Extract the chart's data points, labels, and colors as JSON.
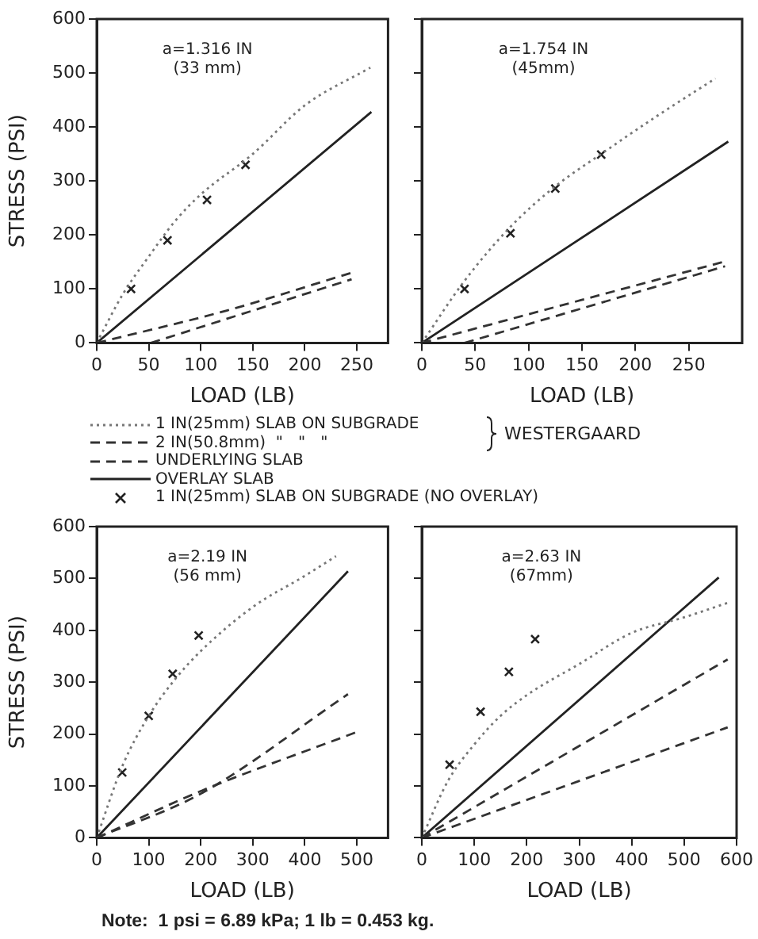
{
  "chart_data": [
    {
      "type": "line",
      "xlabel": "LOAD (LB)",
      "ylabel": "STRESS (PSI)",
      "xlim": [
        0,
        280
      ],
      "xticks": [
        0,
        50,
        100,
        150,
        200,
        250
      ],
      "ylim": [
        0,
        600
      ],
      "yticks": [
        0,
        100,
        200,
        300,
        400,
        500,
        600
      ],
      "grid": false,
      "legend": "bottom",
      "annotations": [
        "a=1.316 IN\n(33 mm)",
        "WESTERGAARD"
      ],
      "series": [
        {
          "name": "1 IN(25mm) SLAB ON SUBGRADE",
          "type": "line",
          "color": "#777777",
          "line_style": "dotted",
          "marker": "none",
          "x": [
            0,
            25,
            50,
            75,
            100,
            150,
            200,
            263
          ],
          "values": [
            0,
            90,
            160,
            225,
            275,
            350,
            440,
            510
          ]
        },
        {
          "name": "2 IN(50.8mm)  \"   \"   \"",
          "type": "line",
          "color": "#333333",
          "line_style": "dashed",
          "marker": "none",
          "x": [
            0,
            125,
            245
          ],
          "values": [
            0,
            60,
            130
          ]
        },
        {
          "name": "UNDERLYING SLAB",
          "type": "line",
          "color": "#333333",
          "line_style": "dashed",
          "marker": "none",
          "x": [
            52,
            245
          ],
          "values": [
            0,
            118
          ]
        },
        {
          "name": "OVERLAY SLAB",
          "type": "line",
          "color": "#222222",
          "line_style": "solid",
          "marker": "none",
          "x": [
            0,
            264
          ],
          "values": [
            0,
            428
          ]
        },
        {
          "name": "1 IN(25mm) SLAB ON SUBGRADE (NO OVERLAY)",
          "type": "scatter",
          "color": "#222222",
          "marker": "cross",
          "x": [
            33,
            68,
            106,
            143
          ],
          "values": [
            100,
            190,
            265,
            330
          ]
        }
      ]
    },
    {
      "type": "line",
      "xlabel": "LOAD (LB)",
      "xlim": [
        0,
        300
      ],
      "xticks": [
        0,
        50,
        100,
        150,
        200,
        250
      ],
      "ylim": [
        0,
        600
      ],
      "yticks": [
        {
          "value": 0,
          "label": null
        },
        {
          "value": 100,
          "label": null
        },
        {
          "value": 200,
          "label": null
        },
        {
          "value": 300,
          "label": null
        },
        {
          "value": 400,
          "label": null
        },
        {
          "value": 500,
          "label": null
        },
        {
          "value": 600,
          "label": null
        }
      ],
      "tick_labels": "x",
      "grid": false,
      "annotations": [
        "a=1.754 IN\n(45mm)"
      ],
      "series": [
        {
          "type": "line",
          "color": "#777777",
          "line_style": "dotted",
          "marker": "none",
          "x": [
            0,
            40,
            83,
            125,
            168,
            220,
            275
          ],
          "values": [
            0,
            115,
            215,
            290,
            350,
            420,
            490
          ]
        },
        {
          "type": "line",
          "color": "#333333",
          "line_style": "dashed",
          "marker": "none",
          "x": [
            0,
            284
          ],
          "values": [
            0,
            151
          ]
        },
        {
          "type": "line",
          "color": "#333333",
          "line_style": "dashed",
          "marker": "none",
          "x": [
            40,
            284
          ],
          "values": [
            0,
            142
          ]
        },
        {
          "type": "line",
          "color": "#222222",
          "line_style": "solid",
          "marker": "none",
          "x": [
            0,
            287
          ],
          "values": [
            0,
            373
          ]
        },
        {
          "type": "scatter",
          "color": "#222222",
          "marker": "cross",
          "x": [
            40,
            83,
            125,
            168
          ],
          "values": [
            100,
            203,
            286,
            349
          ]
        }
      ]
    },
    {
      "type": "line",
      "xlabel": "LOAD (LB)",
      "ylabel": "STRESS (PSI)",
      "xlim": [
        0,
        560
      ],
      "xticks": [
        0,
        100,
        200,
        300,
        400,
        500
      ],
      "ylim": [
        0,
        600
      ],
      "yticks": [
        0,
        100,
        200,
        300,
        400,
        500,
        600
      ],
      "grid": false,
      "annotations": [
        "a=2.19 IN\n(56 mm)",
        "Note:  1 psi = 6.89 kPa; 1 lb = 0.453 kg."
      ],
      "series": [
        {
          "type": "line",
          "color": "#777777",
          "line_style": "dotted",
          "marker": "none",
          "x": [
            0,
            50,
            100,
            150,
            200,
            300,
            400,
            460
          ],
          "values": [
            0,
            140,
            235,
            305,
            360,
            445,
            505,
            543
          ]
        },
        {
          "type": "line",
          "color": "#333333",
          "line_style": "dashed",
          "marker": "none",
          "x": [
            0,
            200,
            500
          ],
          "values": [
            0,
            90,
            204
          ]
        },
        {
          "type": "line",
          "color": "#333333",
          "line_style": "dashed",
          "marker": "none",
          "x": [
            0,
            200,
            483
          ],
          "values": [
            0,
            85,
            277
          ]
        },
        {
          "type": "line",
          "color": "#222222",
          "line_style": "solid",
          "marker": "none",
          "x": [
            0,
            483
          ],
          "values": [
            0,
            514
          ]
        },
        {
          "type": "scatter",
          "color": "#222222",
          "marker": "cross",
          "x": [
            49,
            100,
            146,
            196
          ],
          "values": [
            126,
            235,
            316,
            390
          ]
        }
      ]
    },
    {
      "type": "line",
      "xlabel": "LOAD (LB)",
      "xlim": [
        0,
        600
      ],
      "xticks": [
        0,
        100,
        200,
        300,
        400,
        500,
        600
      ],
      "ylim": [
        0,
        600
      ],
      "yticks": [
        {
          "value": 0,
          "label": null
        },
        {
          "value": 100,
          "label": null
        },
        {
          "value": 200,
          "label": null
        },
        {
          "value": 300,
          "label": null
        },
        {
          "value": 400,
          "label": null
        },
        {
          "value": 500,
          "label": null
        },
        {
          "value": 600,
          "label": null
        }
      ],
      "tick_labels": "x",
      "grid": false,
      "annotations": [
        "a=2.63 IN\n(67mm)"
      ],
      "series": [
        {
          "type": "line",
          "color": "#777777",
          "line_style": "dotted",
          "marker": "none",
          "x": [
            0,
            50,
            100,
            150,
            200,
            300,
            400,
            500,
            583
          ],
          "values": [
            0,
            110,
            180,
            235,
            275,
            335,
            395,
            425,
            453
          ]
        },
        {
          "type": "line",
          "color": "#333333",
          "line_style": "dashed",
          "marker": "none",
          "x": [
            0,
            583
          ],
          "values": [
            0,
            213
          ]
        },
        {
          "type": "line",
          "color": "#333333",
          "line_style": "dashed",
          "marker": "none",
          "x": [
            0,
            583
          ],
          "values": [
            0,
            344
          ]
        },
        {
          "type": "line",
          "color": "#222222",
          "line_style": "solid",
          "marker": "none",
          "x": [
            0,
            566
          ],
          "values": [
            0,
            502
          ]
        },
        {
          "type": "scatter",
          "color": "#222222",
          "marker": "cross",
          "x": [
            53,
            112,
            166,
            216
          ],
          "values": [
            141,
            243,
            320,
            383
          ]
        }
      ]
    }
  ]
}
